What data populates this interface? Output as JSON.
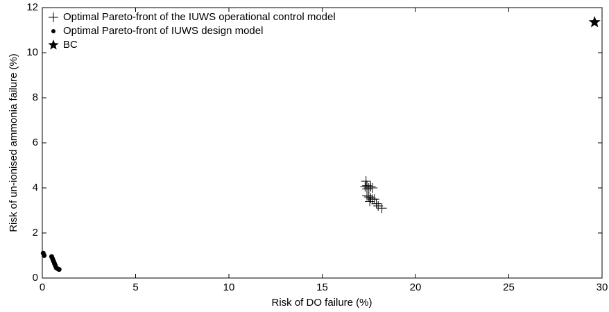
{
  "chart_data": {
    "type": "scatter",
    "xlabel": "Risk of DO failure (%)",
    "ylabel": "Risk of un-ionised ammonia  failure (%)",
    "xlim": [
      0,
      30
    ],
    "xticks": [
      0,
      5,
      10,
      15,
      20,
      25,
      30
    ],
    "ylim": [
      0,
      12
    ],
    "yticks": [
      0,
      2,
      4,
      6,
      8,
      10,
      12
    ],
    "legend": "upper left",
    "series": [
      {
        "name": "Optimal Pareto-front of the IUWS operational control  model",
        "marker": "plus",
        "color": "#000000",
        "x": [
          17.3,
          17.4,
          17.5,
          17.6,
          17.7,
          17.35,
          17.4,
          17.5,
          17.6,
          17.7,
          17.8,
          17.4,
          17.55,
          18.0,
          18.2,
          17.9
        ],
        "y": [
          4.05,
          4.1,
          4.0,
          4.05,
          4.0,
          4.3,
          3.95,
          3.6,
          3.55,
          3.5,
          3.5,
          3.65,
          3.4,
          3.2,
          3.1,
          3.3
        ]
      },
      {
        "name": "Optimal Pareto-front of IUWS design  model",
        "marker": "dot",
        "color": "#000000",
        "x": [
          0.05,
          0.1,
          0.5,
          0.55,
          0.6,
          0.65,
          0.7,
          0.75,
          0.85,
          0.9
        ],
        "y": [
          1.1,
          1.0,
          0.95,
          0.85,
          0.75,
          0.65,
          0.55,
          0.45,
          0.4,
          0.38
        ]
      },
      {
        "name": "BC",
        "marker": "star",
        "color": "#000000",
        "x": [
          29.6
        ],
        "y": [
          11.35
        ]
      }
    ]
  }
}
